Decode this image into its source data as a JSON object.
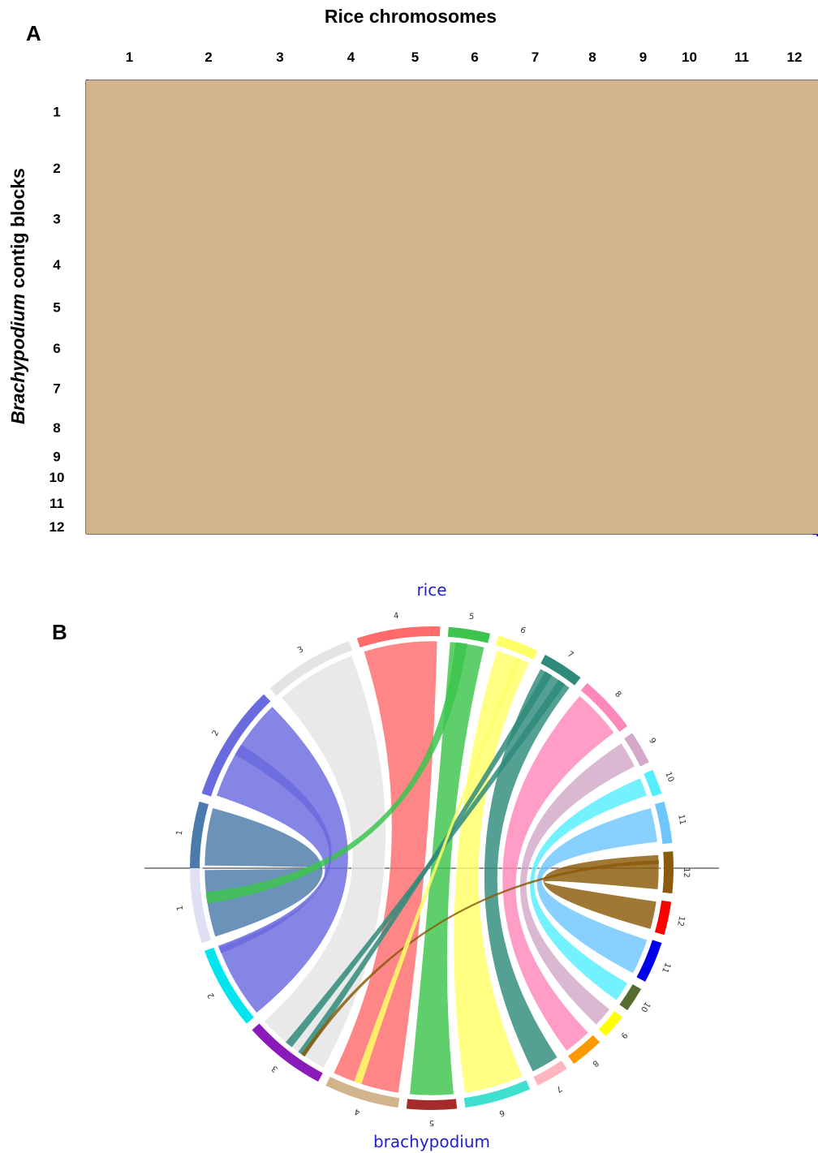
{
  "panel_a": {
    "letter": "A",
    "title": "Rice chromosomes",
    "ylabel_italic": "Brachypodium",
    "ylabel_rest": " contig blocks",
    "x_labels": [
      "1",
      "2",
      "3",
      "4",
      "5",
      "6",
      "7",
      "8",
      "9",
      "10",
      "11",
      "12"
    ],
    "y_labels": [
      "1",
      "2",
      "3",
      "4",
      "5",
      "6",
      "7",
      "8",
      "9",
      "10",
      "11",
      "12"
    ],
    "colors": {
      "background": "#d2b48c",
      "dots": "#1a1aff",
      "grid": "#222222"
    }
  },
  "panel_b": {
    "letter": "B",
    "top_title": "rice",
    "bottom_title": "brachypodium",
    "rice_labels": [
      "1",
      "2",
      "3",
      "4",
      "5",
      "6",
      "7",
      "8",
      "9",
      "10",
      "11",
      "12"
    ],
    "brachy_labels": [
      "1",
      "2",
      "3",
      "4",
      "5",
      "6",
      "7",
      "8",
      "9",
      "10",
      "11",
      "12"
    ],
    "colors": [
      "#4b7bab",
      "#6a6adf",
      "#e4e4e4",
      "#ff6b6b",
      "#3cc44c",
      "#ffff66",
      "#2e8b7a",
      "#ff88bb",
      "#d3a8c8",
      "#55eeff",
      "#6ec6ff",
      "#8b5a0a"
    ],
    "brachy_colors": [
      "#e0e0f4",
      "#00e5ee",
      "#8b1abb",
      "#d2b48c",
      "#a52a2a",
      "#40e0d0",
      "#ffb6c1",
      "#ff9900",
      "#ffff00",
      "#556b2f",
      "#0000ee",
      "#ff0000"
    ]
  }
}
